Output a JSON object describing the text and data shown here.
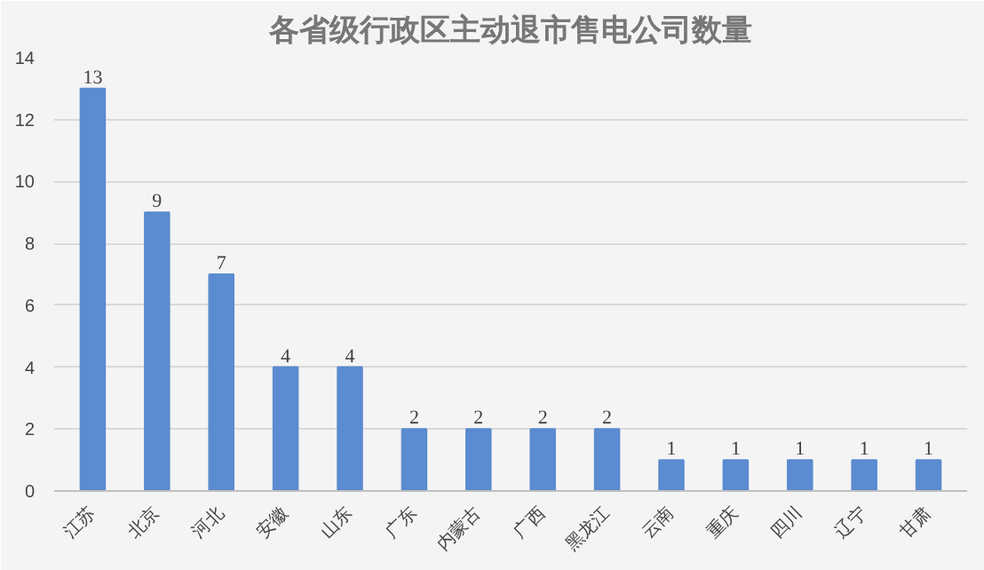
{
  "chart_data": {
    "type": "bar",
    "title": "各省级行政区主动退市售电公司数量",
    "categories": [
      "江苏",
      "北京",
      "河北",
      "安徽",
      "山东",
      "广东",
      "内蒙古",
      "广西",
      "黑龙江",
      "云南",
      "重庆",
      "四川",
      "辽宁",
      "甘肃"
    ],
    "values": [
      13,
      9,
      7,
      4,
      4,
      2,
      2,
      2,
      2,
      1,
      1,
      1,
      1,
      1
    ],
    "color": "#5b8bd0",
    "ylim": [
      0,
      14
    ],
    "yticks": [
      0,
      2,
      4,
      6,
      8,
      10,
      12,
      14
    ],
    "grid": "y",
    "data_labels": true
  }
}
